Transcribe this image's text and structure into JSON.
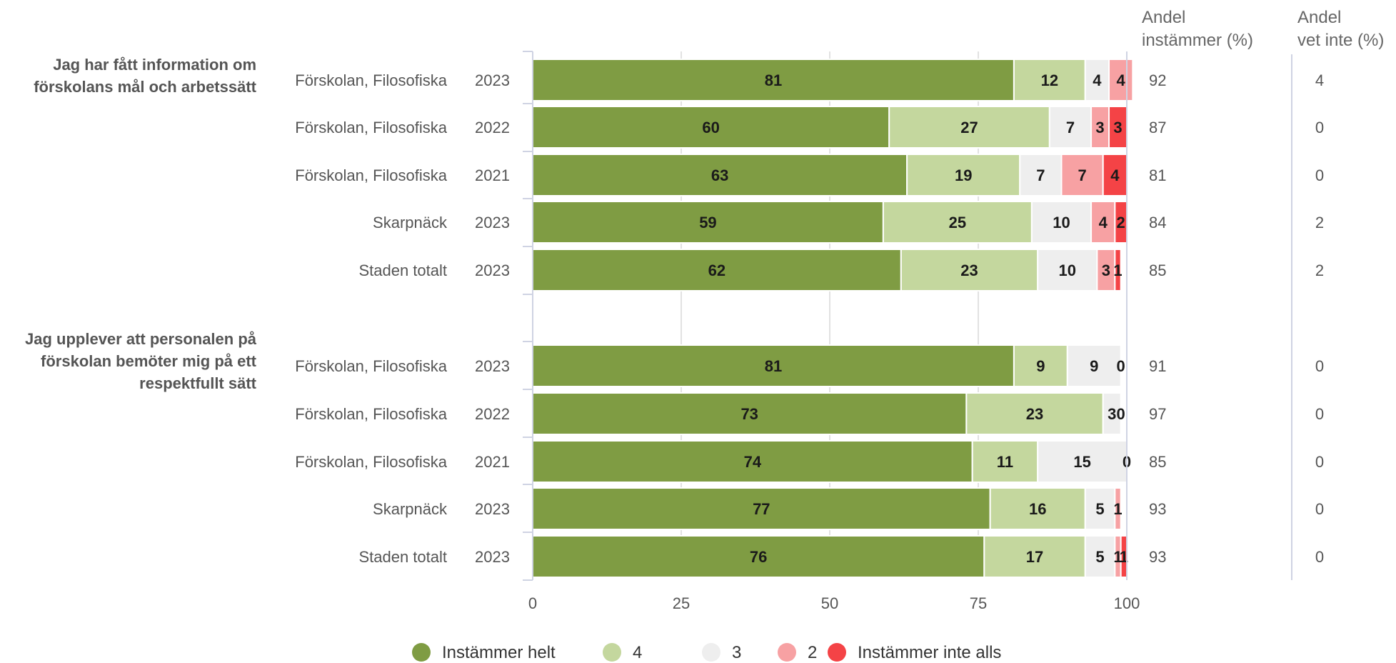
{
  "chart_data": {
    "type": "bar",
    "stacked": true,
    "orientation": "horizontal",
    "xlim": [
      0,
      100
    ],
    "xticks": [
      0,
      25,
      50,
      75,
      100
    ],
    "grid": true,
    "legend_placement": "bottom",
    "colors": {
      "Instämmer helt": "#7f9c43",
      "4": "#c4d79e",
      "3": "#eeeeee",
      "2": "#f7a1a3",
      "Instämmer inte alls": "#f44346"
    },
    "legend": [
      "Instämmer helt",
      "4",
      "3",
      "2",
      "Instämmer inte alls"
    ],
    "columns": {
      "share_agree": "Andel\ninstämmer (%)",
      "share_dont_know": "Andel\nvet inte (%)"
    },
    "groups": [
      {
        "question": "Jag har fått information om\nförskolans mål och arbetssätt",
        "rows": [
          {
            "unit": "Förskolan, Filosofiska",
            "year": "2023",
            "values": [
              81,
              12,
              4,
              4,
              0
            ],
            "share_agree": "92",
            "share_dont_know": "4"
          },
          {
            "unit": "Förskolan, Filosofiska",
            "year": "2022",
            "values": [
              60,
              27,
              7,
              3,
              3
            ],
            "share_agree": "87",
            "share_dont_know": "0"
          },
          {
            "unit": "Förskolan, Filosofiska",
            "year": "2021",
            "values": [
              63,
              19,
              7,
              7,
              4
            ],
            "share_agree": "81",
            "share_dont_know": "0"
          },
          {
            "unit": "Skarpnäck",
            "year": "2023",
            "values": [
              59,
              25,
              10,
              4,
              2
            ],
            "share_agree": "84",
            "share_dont_know": "2"
          },
          {
            "unit": "Staden totalt",
            "year": "2023",
            "values": [
              62,
              23,
              10,
              3,
              1
            ],
            "share_agree": "85",
            "share_dont_know": "2"
          }
        ]
      },
      {
        "question": "Jag upplever att personalen på\nförskolan bemöter mig på ett\nrespektfullt sätt",
        "rows": [
          {
            "unit": "Förskolan, Filosofiska",
            "year": "2023",
            "values": [
              81,
              9,
              9,
              0,
              0
            ],
            "share_agree": "91",
            "share_dont_know": "0"
          },
          {
            "unit": "Förskolan, Filosofiska",
            "year": "2022",
            "values": [
              73,
              23,
              3,
              0,
              0
            ],
            "share_agree": "97",
            "share_dont_know": "0"
          },
          {
            "unit": "Förskolan, Filosofiska",
            "year": "2021",
            "values": [
              74,
              11,
              15,
              0,
              0
            ],
            "share_agree": "85",
            "share_dont_know": "0"
          },
          {
            "unit": "Skarpnäck",
            "year": "2023",
            "values": [
              77,
              16,
              5,
              1,
              0
            ],
            "share_agree": "93",
            "share_dont_know": "0"
          },
          {
            "unit": "Staden totalt",
            "year": "2023",
            "values": [
              76,
              17,
              5,
              1,
              1
            ],
            "share_agree": "93",
            "share_dont_know": "0"
          }
        ]
      }
    ]
  }
}
